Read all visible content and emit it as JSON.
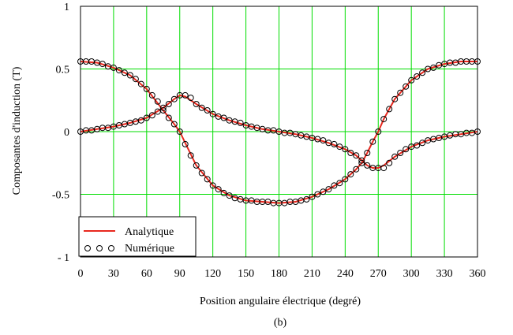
{
  "chart_data": {
    "type": "line",
    "xlabel": "Position angulaire électrique (degré)",
    "ylabel": "Composantes d'induction (T)",
    "caption": "(b)",
    "xlim": [
      0,
      360
    ],
    "ylim": [
      -1,
      1
    ],
    "xticks": [
      0,
      30,
      60,
      90,
      120,
      150,
      180,
      210,
      240,
      270,
      300,
      330,
      360
    ],
    "yticks": [
      1,
      0.5,
      0,
      -0.5,
      -1
    ],
    "ytick_labels": [
      "1",
      "0.5",
      "0",
      "-0.5",
      "- 1"
    ],
    "grid": true,
    "grid_color": "#00dd00",
    "legend_position": "bottom-left",
    "series": [
      {
        "name": "Analytique",
        "style": "line",
        "color": "#e8281e",
        "curves": [
          {
            "x": [
              0,
              15,
              30,
              45,
              60,
              75,
              85,
              90,
              95,
              105,
              120,
              135,
              150,
              165,
              180,
              195,
              210,
              225,
              240,
              250,
              255,
              260,
              265,
              270,
              275,
              285,
              300,
              315,
              330,
              345,
              360
            ],
            "y": [
              0.56,
              0.55,
              0.51,
              0.45,
              0.34,
              0.17,
              0.06,
              0.0,
              -0.09,
              -0.27,
              -0.43,
              -0.51,
              -0.55,
              -0.56,
              -0.57,
              -0.56,
              -0.52,
              -0.46,
              -0.38,
              -0.3,
              -0.25,
              -0.17,
              -0.08,
              0.0,
              0.1,
              0.26,
              0.41,
              0.5,
              0.54,
              0.56,
              0.56
            ]
          },
          {
            "x": [
              0,
              15,
              30,
              45,
              60,
              75,
              85,
              90,
              95,
              105,
              120,
              135,
              150,
              165,
              180,
              195,
              210,
              225,
              240,
              250,
              255,
              260,
              265,
              270,
              275,
              285,
              300,
              315,
              330,
              345,
              360
            ],
            "y": [
              0.0,
              0.02,
              0.04,
              0.07,
              0.11,
              0.19,
              0.26,
              0.29,
              0.28,
              0.22,
              0.14,
              0.09,
              0.05,
              0.02,
              0.0,
              -0.02,
              -0.05,
              -0.09,
              -0.14,
              -0.19,
              -0.23,
              -0.27,
              -0.29,
              -0.29,
              -0.27,
              -0.2,
              -0.12,
              -0.07,
              -0.04,
              -0.02,
              0.0
            ]
          }
        ]
      },
      {
        "name": "Numérique",
        "style": "circles",
        "color": "#000000",
        "x": [
          0,
          5,
          10,
          15,
          20,
          25,
          30,
          35,
          40,
          45,
          50,
          55,
          60,
          65,
          70,
          75,
          80,
          85,
          90,
          95,
          100,
          105,
          110,
          115,
          120,
          125,
          130,
          135,
          140,
          145,
          150,
          155,
          160,
          165,
          170,
          175,
          180,
          185,
          190,
          195,
          200,
          205,
          210,
          215,
          220,
          225,
          230,
          235,
          240,
          245,
          250,
          255,
          260,
          265,
          270,
          275,
          280,
          285,
          290,
          295,
          300,
          305,
          310,
          315,
          320,
          325,
          330,
          335,
          340,
          345,
          350,
          355,
          360
        ],
        "y1": [
          0.56,
          0.56,
          0.56,
          0.55,
          0.54,
          0.52,
          0.51,
          0.49,
          0.47,
          0.45,
          0.42,
          0.38,
          0.34,
          0.29,
          0.24,
          0.17,
          0.11,
          0.06,
          0.0,
          -0.1,
          -0.19,
          -0.27,
          -0.33,
          -0.38,
          -0.43,
          -0.46,
          -0.49,
          -0.51,
          -0.53,
          -0.54,
          -0.55,
          -0.55,
          -0.56,
          -0.56,
          -0.56,
          -0.57,
          -0.57,
          -0.57,
          -0.56,
          -0.56,
          -0.55,
          -0.54,
          -0.52,
          -0.5,
          -0.48,
          -0.46,
          -0.43,
          -0.41,
          -0.38,
          -0.34,
          -0.3,
          -0.25,
          -0.17,
          -0.08,
          0.0,
          0.1,
          0.18,
          0.26,
          0.31,
          0.36,
          0.41,
          0.44,
          0.47,
          0.5,
          0.51,
          0.53,
          0.54,
          0.55,
          0.55,
          0.56,
          0.56,
          0.56,
          0.56
        ],
        "y2": [
          0.0,
          0.01,
          0.01,
          0.02,
          0.03,
          0.03,
          0.04,
          0.05,
          0.06,
          0.07,
          0.08,
          0.09,
          0.11,
          0.13,
          0.16,
          0.19,
          0.22,
          0.26,
          0.29,
          0.29,
          0.27,
          0.22,
          0.19,
          0.17,
          0.14,
          0.12,
          0.11,
          0.09,
          0.08,
          0.07,
          0.05,
          0.04,
          0.03,
          0.02,
          0.01,
          0.01,
          0.0,
          -0.01,
          -0.01,
          -0.02,
          -0.03,
          -0.04,
          -0.05,
          -0.06,
          -0.07,
          -0.09,
          -0.1,
          -0.12,
          -0.14,
          -0.17,
          -0.19,
          -0.23,
          -0.27,
          -0.29,
          -0.29,
          -0.29,
          -0.25,
          -0.2,
          -0.17,
          -0.14,
          -0.12,
          -0.11,
          -0.09,
          -0.07,
          -0.06,
          -0.05,
          -0.04,
          -0.03,
          -0.02,
          -0.02,
          -0.01,
          -0.01,
          0.0
        ]
      }
    ]
  }
}
